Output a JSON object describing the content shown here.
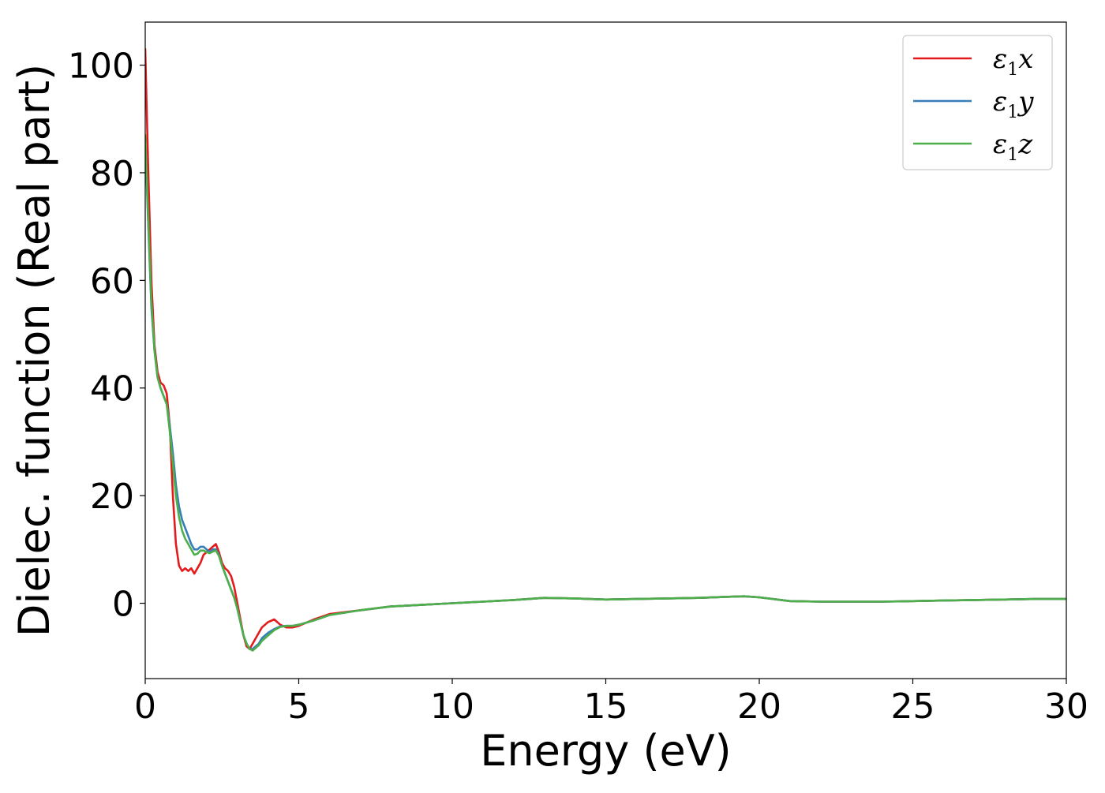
{
  "chart_data": {
    "type": "line",
    "title": "",
    "xlabel": "Energy (eV)",
    "ylabel": "Dielec. function (Real part)",
    "xlim": [
      0,
      30
    ],
    "ylim": [
      -14,
      108
    ],
    "xticks": [
      0,
      5,
      10,
      15,
      20,
      25,
      30
    ],
    "yticks": [
      0,
      20,
      40,
      60,
      80,
      100
    ],
    "grid": false,
    "legend_position": "top-right",
    "series": [
      {
        "name": "ε1x",
        "legend_main": "ε",
        "legend_sub": "1",
        "legend_suffix": "x",
        "color": "#e41a1c",
        "x": [
          0,
          0.1,
          0.2,
          0.3,
          0.4,
          0.5,
          0.6,
          0.7,
          0.8,
          0.9,
          1.0,
          1.1,
          1.2,
          1.3,
          1.4,
          1.5,
          1.6,
          1.7,
          1.8,
          1.9,
          2.0,
          2.1,
          2.2,
          2.3,
          2.4,
          2.5,
          2.6,
          2.7,
          2.8,
          2.9,
          3.0,
          3.1,
          3.2,
          3.3,
          3.4,
          3.5,
          3.6,
          3.7,
          3.8,
          3.9,
          4.0,
          4.2,
          4.4,
          4.6,
          4.8,
          5.0,
          5.5,
          6.0,
          7.0,
          8.0,
          9.0,
          10.0,
          11.0,
          12.0,
          13.0,
          14.0,
          15.0,
          16.0,
          17.0,
          18.0,
          19.0,
          19.5,
          20.0,
          21.0,
          22.0,
          23.0,
          24.0,
          25.0,
          26.0,
          27.0,
          28.0,
          29.0,
          30.0
        ],
        "values": [
          103,
          80,
          60,
          48,
          43,
          41,
          40.5,
          39,
          33,
          20,
          11,
          7,
          6,
          6.5,
          6,
          6.5,
          5.5,
          6.5,
          7.5,
          9,
          9.5,
          10,
          10.5,
          11,
          9.5,
          7.5,
          6.5,
          6,
          5,
          3,
          0,
          -3,
          -6,
          -8,
          -8.5,
          -7.5,
          -6.5,
          -5.5,
          -4.5,
          -4,
          -3.5,
          -3,
          -4,
          -4.5,
          -4.5,
          -4.2,
          -3,
          -2,
          -1.3,
          -0.6,
          -0.3,
          0,
          0.3,
          0.6,
          1.0,
          0.9,
          0.7,
          0.8,
          0.9,
          1.0,
          1.2,
          1.3,
          1.1,
          0.4,
          0.3,
          0.3,
          0.3,
          0.4,
          0.5,
          0.6,
          0.7,
          0.8,
          0.8
        ]
      },
      {
        "name": "ε1y",
        "legend_main": "ε",
        "legend_sub": "1",
        "legend_suffix": "y",
        "color": "#377eb8",
        "x": [
          0,
          0.1,
          0.2,
          0.3,
          0.4,
          0.5,
          0.6,
          0.7,
          0.8,
          0.9,
          1.0,
          1.1,
          1.2,
          1.3,
          1.4,
          1.5,
          1.6,
          1.7,
          1.8,
          1.9,
          2.0,
          2.1,
          2.2,
          2.3,
          2.4,
          2.5,
          2.6,
          2.7,
          2.8,
          2.9,
          3.0,
          3.1,
          3.2,
          3.3,
          3.4,
          3.5,
          3.6,
          3.7,
          3.8,
          3.9,
          4.0,
          4.2,
          4.4,
          4.6,
          4.8,
          5.0,
          5.5,
          6.0,
          7.0,
          8.0,
          9.0,
          10.0,
          11.0,
          12.0,
          13.0,
          14.0,
          15.0,
          16.0,
          17.0,
          18.0,
          19.0,
          19.5,
          20.0,
          21.0,
          22.0,
          23.0,
          24.0,
          25.0,
          26.0,
          27.0,
          28.0,
          29.0,
          30.0
        ],
        "values": [
          86,
          70,
          55,
          47,
          42,
          40,
          38.5,
          37,
          33,
          28,
          22,
          18,
          15.5,
          14,
          12.5,
          11,
          10,
          10,
          10.5,
          10.5,
          10,
          9.5,
          10,
          10,
          9,
          7,
          5.5,
          4,
          2.5,
          1,
          -1,
          -3.5,
          -6,
          -7.5,
          -8.5,
          -8.5,
          -8,
          -7.5,
          -6.5,
          -6,
          -5.5,
          -4.8,
          -4.3,
          -4.2,
          -4.2,
          -4,
          -3.2,
          -2.2,
          -1.3,
          -0.6,
          -0.3,
          0,
          0.3,
          0.6,
          1.0,
          0.9,
          0.7,
          0.8,
          0.9,
          1.0,
          1.2,
          1.3,
          1.1,
          0.4,
          0.3,
          0.3,
          0.3,
          0.4,
          0.5,
          0.6,
          0.7,
          0.8,
          0.8
        ]
      },
      {
        "name": "ε1z",
        "legend_main": "ε",
        "legend_sub": "1",
        "legend_suffix": "z",
        "color": "#4daf4a",
        "x": [
          0,
          0.1,
          0.2,
          0.3,
          0.4,
          0.5,
          0.6,
          0.7,
          0.8,
          0.9,
          1.0,
          1.1,
          1.2,
          1.3,
          1.4,
          1.5,
          1.6,
          1.7,
          1.8,
          1.9,
          2.0,
          2.1,
          2.2,
          2.3,
          2.4,
          2.5,
          2.6,
          2.7,
          2.8,
          2.9,
          3.0,
          3.1,
          3.2,
          3.3,
          3.4,
          3.5,
          3.6,
          3.7,
          3.8,
          3.9,
          4.0,
          4.2,
          4.4,
          4.6,
          4.8,
          5.0,
          5.5,
          6.0,
          7.0,
          8.0,
          9.0,
          10.0,
          11.0,
          12.0,
          13.0,
          14.0,
          15.0,
          16.0,
          17.0,
          18.0,
          19.0,
          19.5,
          20.0,
          21.0,
          22.0,
          23.0,
          24.0,
          25.0,
          26.0,
          27.0,
          28.0,
          29.0,
          30.0
        ],
        "values": [
          87,
          71,
          56,
          47,
          42,
          40,
          38.5,
          37,
          32,
          26,
          20,
          16,
          13.5,
          12,
          11,
          10,
          9,
          9.2,
          9.8,
          9.8,
          9.5,
          9.3,
          9.6,
          9.8,
          8.8,
          7,
          5.5,
          4,
          2.5,
          1,
          -1,
          -3.5,
          -6,
          -7.5,
          -8.5,
          -8.8,
          -8.3,
          -7.8,
          -7,
          -6.5,
          -6,
          -5,
          -4.4,
          -4.2,
          -4.2,
          -4,
          -3.2,
          -2.2,
          -1.3,
          -0.6,
          -0.3,
          0,
          0.3,
          0.6,
          1.0,
          0.9,
          0.7,
          0.8,
          0.9,
          1.0,
          1.2,
          1.3,
          1.1,
          0.4,
          0.3,
          0.3,
          0.3,
          0.4,
          0.5,
          0.6,
          0.7,
          0.8,
          0.8
        ]
      }
    ]
  }
}
